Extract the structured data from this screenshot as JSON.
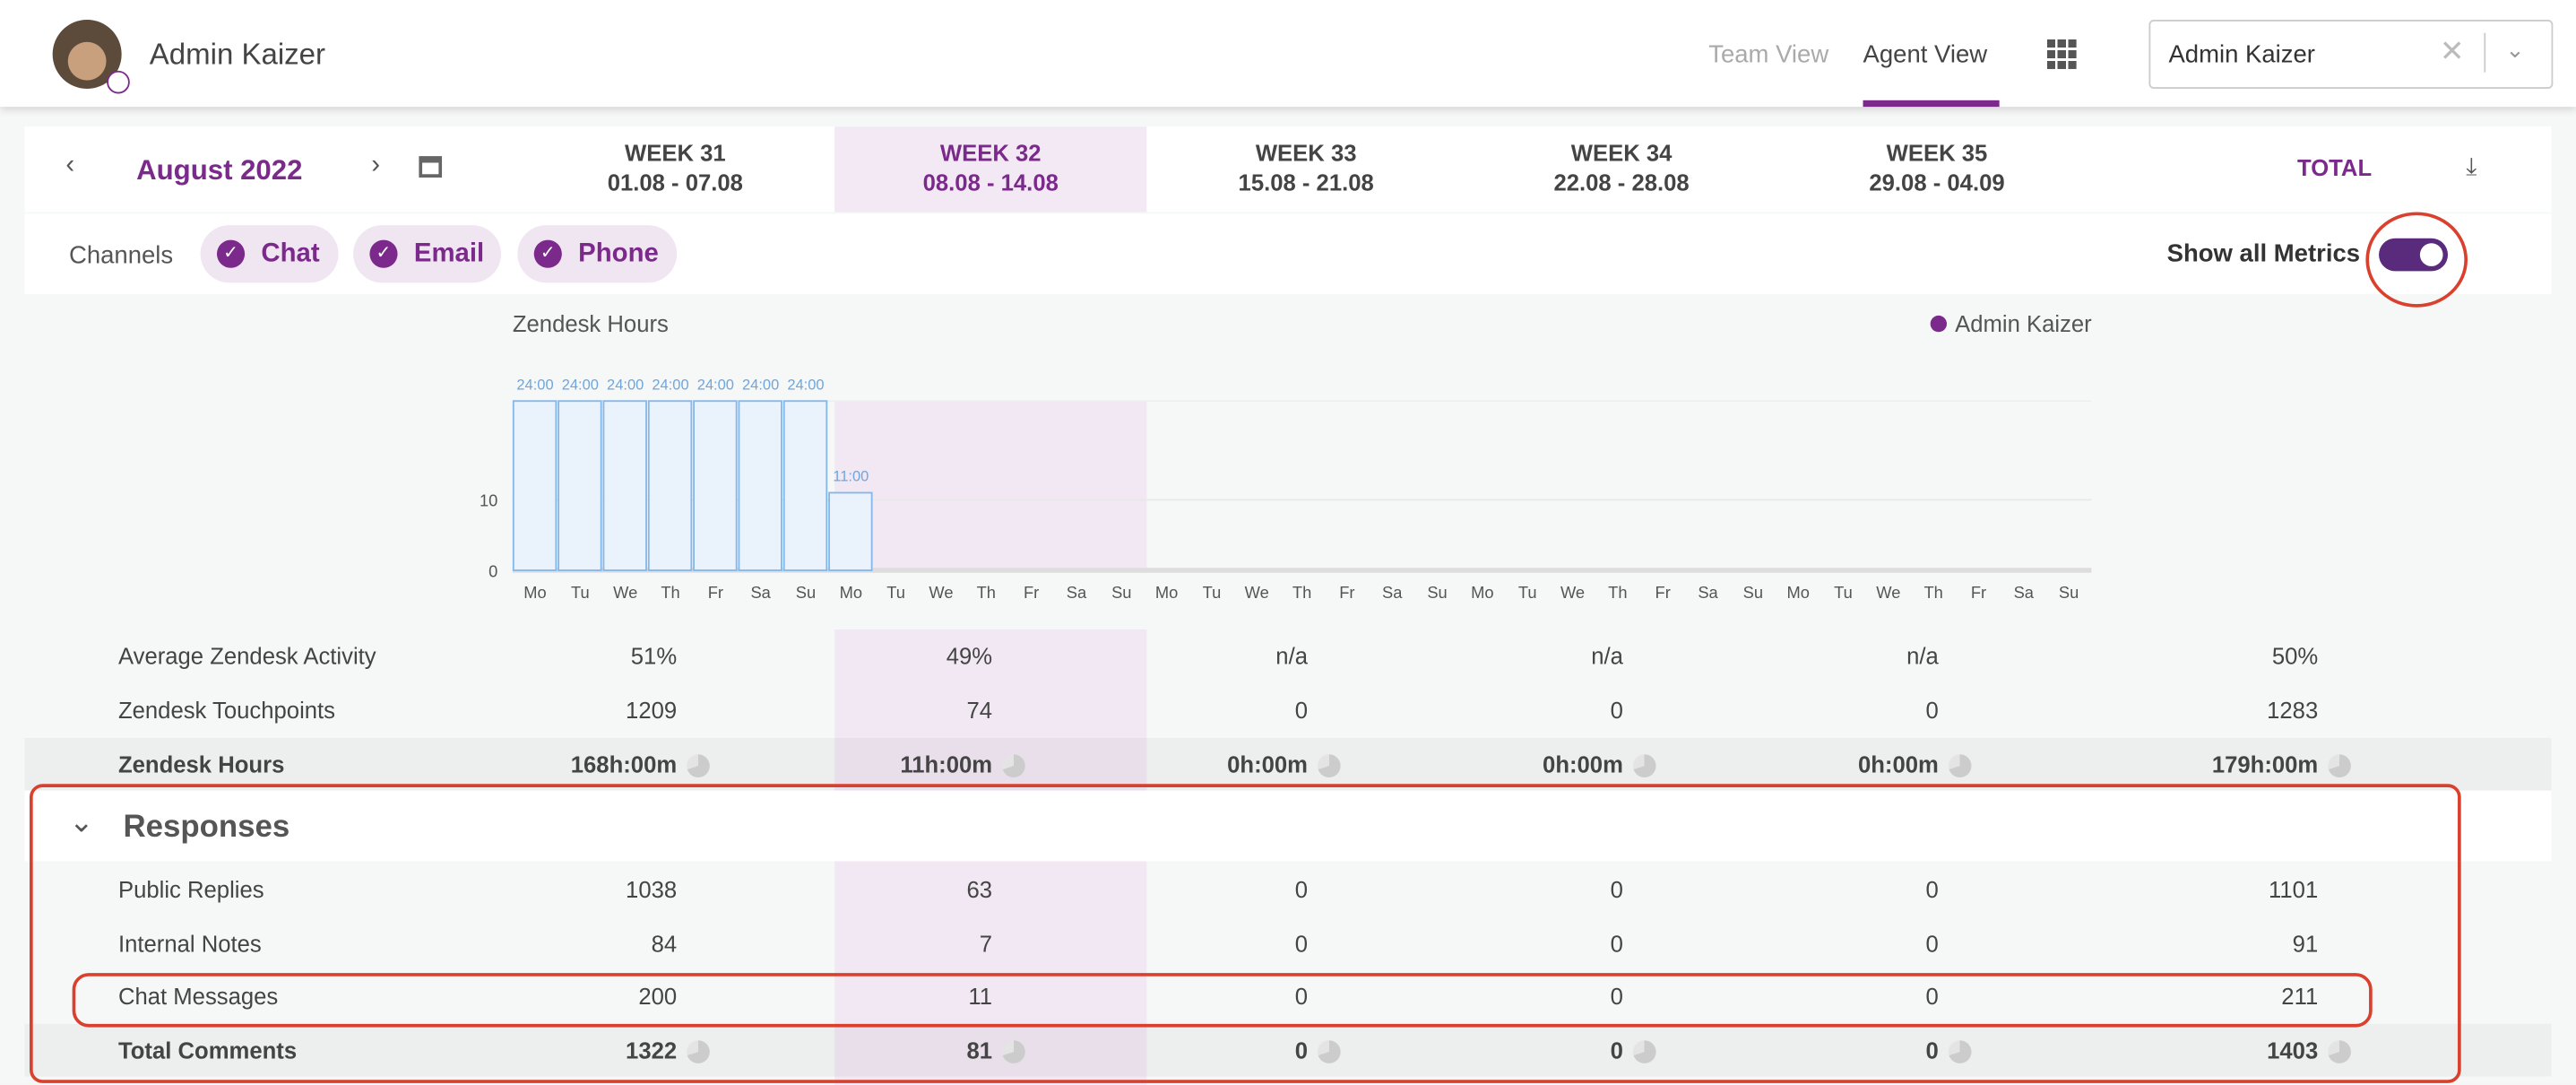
{
  "header": {
    "user": "Admin Kaizer",
    "tabs": [
      "Team View",
      "Agent View"
    ],
    "select": "Admin Kaizer"
  },
  "nav": {
    "month": "August 2022",
    "weeks": [
      {
        "label": "WEEK 31",
        "range": "01.08 - 07.08"
      },
      {
        "label": "WEEK 32",
        "range": "08.08 - 14.08"
      },
      {
        "label": "WEEK 33",
        "range": "15.08 - 21.08"
      },
      {
        "label": "WEEK 34",
        "range": "22.08 - 28.08"
      },
      {
        "label": "WEEK 35",
        "range": "29.08 - 04.09"
      }
    ],
    "total": "TOTAL"
  },
  "channels": {
    "label": "Channels",
    "items": [
      "Chat",
      "Email",
      "Phone"
    ],
    "toggle_label": "Show all Metrics"
  },
  "chart_data": {
    "type": "bar",
    "title": "Zendesk Hours",
    "categories": [
      "Mo",
      "Tu",
      "We",
      "Th",
      "Fr",
      "Sa",
      "Su",
      "Mo",
      "Tu",
      "We",
      "Th",
      "Fr",
      "Sa",
      "Su",
      "Mo",
      "Tu",
      "We",
      "Th",
      "Fr",
      "Sa",
      "Su",
      "Mo",
      "Tu",
      "We",
      "Th",
      "Fr",
      "Sa",
      "Su",
      "Mo",
      "Tu",
      "We",
      "Th",
      "Fr",
      "Sa",
      "Su"
    ],
    "series": [
      {
        "name": "Admin Kaizer",
        "color": "#7b2a8c",
        "values": [
          24,
          24,
          24,
          24,
          24,
          24,
          24,
          11,
          0,
          0,
          0,
          0,
          0,
          0,
          0,
          0,
          0,
          0,
          0,
          0,
          0,
          0,
          0,
          0,
          0,
          0,
          0,
          0,
          0,
          0,
          0,
          0,
          0,
          0,
          0
        ],
        "value_labels": [
          "24:00",
          "24:00",
          "24:00",
          "24:00",
          "24:00",
          "24:00",
          "24:00",
          "11:00",
          null,
          null,
          null,
          null,
          null,
          null,
          null,
          null,
          null,
          null,
          null,
          null,
          null,
          null,
          null,
          null,
          null,
          null,
          null,
          null,
          null,
          null,
          null,
          null,
          null,
          null,
          null
        ]
      }
    ],
    "bar_fill": "#eaf2fc",
    "bar_stroke": "#84b8ea",
    "ylim": [
      0,
      24
    ],
    "yticks": [
      0,
      10
    ],
    "grid": true
  },
  "metrics": {
    "rows": [
      {
        "label": "Average Zendesk Activity",
        "values": [
          "51%",
          "49%",
          "n/a",
          "n/a",
          "n/a",
          "50%"
        ]
      },
      {
        "label": "Zendesk Touchpoints",
        "values": [
          "1209",
          "74",
          "0",
          "0",
          "0",
          "1283"
        ]
      },
      {
        "label": "Zendesk Hours",
        "values": [
          "168h:00m",
          "11h:00m",
          "0h:00m",
          "0h:00m",
          "0h:00m",
          "179h:00m"
        ]
      }
    ]
  },
  "responses": {
    "title": "Responses",
    "rows": [
      {
        "label": "Public Replies",
        "values": [
          "1038",
          "63",
          "0",
          "0",
          "0",
          "1101"
        ]
      },
      {
        "label": "Internal Notes",
        "values": [
          "84",
          "7",
          "0",
          "0",
          "0",
          "91"
        ]
      },
      {
        "label": "Chat Messages",
        "values": [
          "200",
          "11",
          "0",
          "0",
          "0",
          "211"
        ]
      },
      {
        "label": "Total Comments",
        "values": [
          "1322",
          "81",
          "0",
          "0",
          "0",
          "1403"
        ]
      }
    ]
  }
}
